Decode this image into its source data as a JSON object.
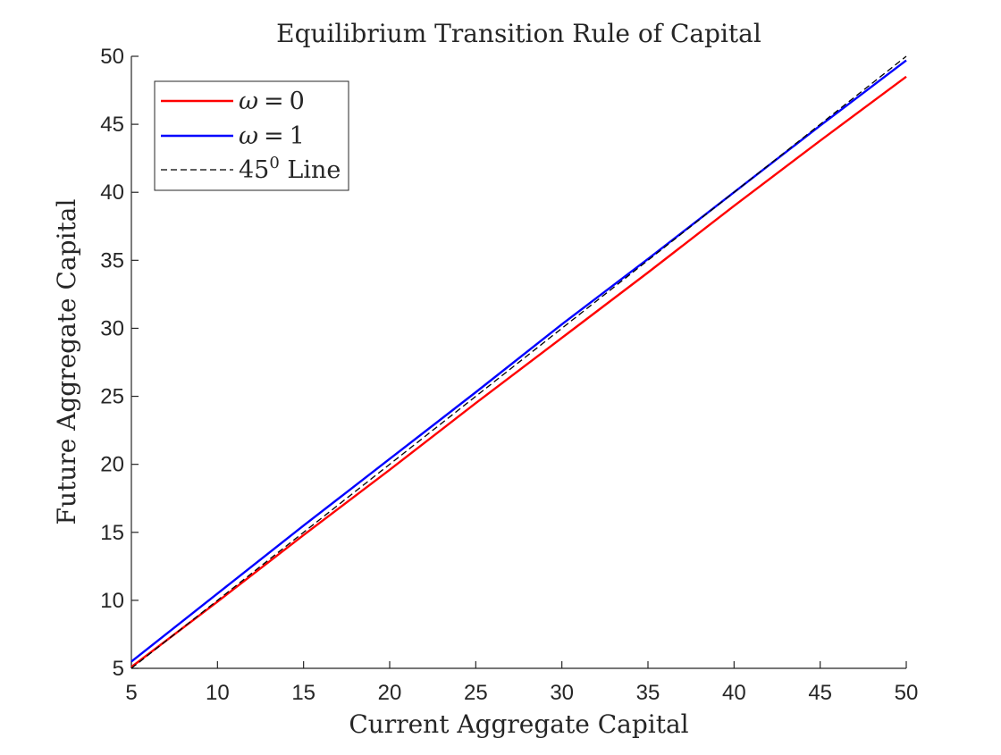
{
  "chart_data": {
    "type": "line",
    "title": "Equilibrium Transition Rule of Capital",
    "xlabel": "Current Aggregate Capital",
    "ylabel": "Future Aggregate Capital",
    "xlim": [
      5,
      50
    ],
    "ylim": [
      5,
      50
    ],
    "xticks": [
      5,
      10,
      15,
      20,
      25,
      30,
      35,
      40,
      45,
      50
    ],
    "yticks": [
      5,
      10,
      15,
      20,
      25,
      30,
      35,
      40,
      45,
      50
    ],
    "grid": false,
    "legend_position": "top-left",
    "series": [
      {
        "name_symbol": "ω",
        "name_value": "0",
        "color": "#ff0000",
        "style": "solid",
        "x": [
          5,
          10,
          15,
          20,
          25,
          30,
          35,
          40,
          45,
          50
        ],
        "y": [
          5.1,
          9.9,
          14.8,
          19.6,
          24.5,
          29.3,
          34.1,
          39.0,
          43.8,
          48.5
        ]
      },
      {
        "name_symbol": "ω",
        "name_value": "1",
        "color": "#0000ff",
        "style": "solid",
        "x": [
          5,
          10,
          15,
          20,
          25,
          30,
          35,
          40,
          45,
          50
        ],
        "y": [
          5.5,
          10.5,
          15.5,
          20.4,
          25.3,
          30.3,
          35.1,
          40.0,
          44.9,
          49.7
        ]
      },
      {
        "name_base": "45",
        "name_sup": "0",
        "name_suffix": " Line",
        "color": "#000000",
        "style": "dashed",
        "x": [
          5,
          50
        ],
        "y": [
          5,
          50
        ]
      }
    ]
  }
}
